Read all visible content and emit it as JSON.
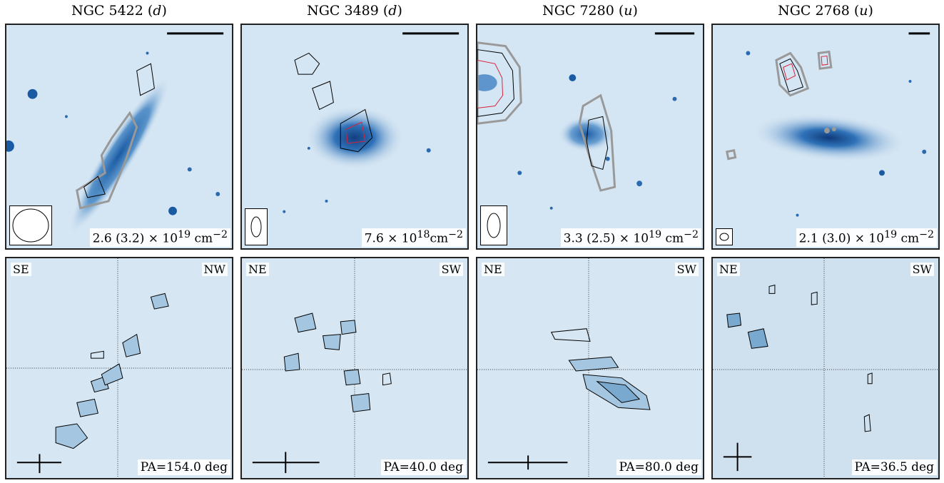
{
  "columns": [
    {
      "galaxy": "NGC 5422",
      "type": "d"
    },
    {
      "galaxy": "NGC 3489",
      "type": "d"
    },
    {
      "galaxy": "NGC 7280",
      "type": "u"
    },
    {
      "galaxy": "NGC 2768",
      "type": "u"
    }
  ],
  "column_density": [
    {
      "base": "2.6 (3.2) × 10",
      "exp": "19",
      "unit": " cm",
      "unit_exp": "−2"
    },
    {
      "base": "7.6 × 10",
      "exp": "18",
      "unit": "cm",
      "unit_exp": "−2"
    },
    {
      "base": "3.3 (2.5) × 10",
      "exp": "19",
      "unit": " cm",
      "unit_exp": "−2"
    },
    {
      "base": "2.1 (3.0) × 10",
      "exp": "19",
      "unit": " cm",
      "unit_exp": "−2"
    }
  ],
  "pv": [
    {
      "left": "SE",
      "right": "NW",
      "pa": "PA=154.0 deg"
    },
    {
      "left": "NE",
      "right": "SW",
      "pa": "PA=40.0 deg"
    },
    {
      "left": "NE",
      "right": "SW",
      "pa": "PA=80.0 deg"
    },
    {
      "left": "NE",
      "right": "SW",
      "pa": "PA=36.5 deg"
    }
  ],
  "colors": {
    "image_bg": "#d4e5f3",
    "galaxy": "#1f5fa5",
    "pv_bg": "#d6e6f2",
    "contour_gray": "#999999",
    "contour_red": "#d9233a"
  }
}
